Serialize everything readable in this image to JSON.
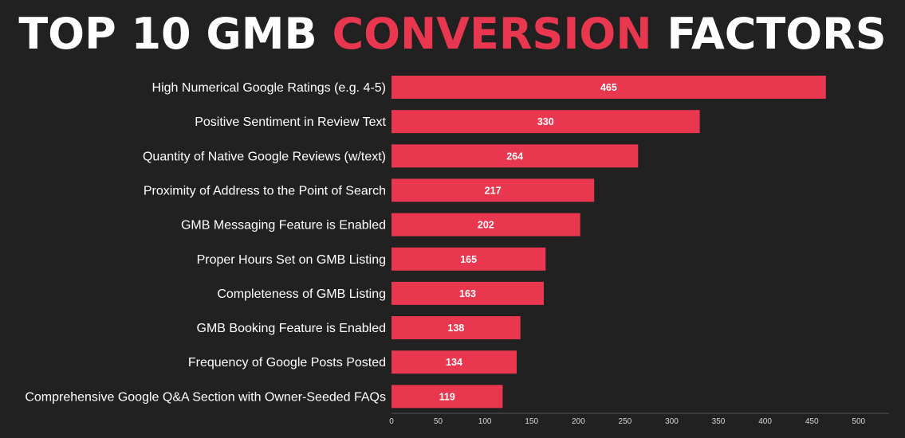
{
  "title": {
    "part1": "TOP 10 GMB ",
    "part2": "CONVERSION",
    "part3": " FACTORS"
  },
  "colors": {
    "background": "#212121",
    "bar": "#e8374f",
    "accent": "#e8374f",
    "text": "#ffffff"
  },
  "chart_data": {
    "type": "bar",
    "orientation": "horizontal",
    "categories": [
      "High Numerical Google Ratings (e.g. 4-5)",
      "Positive Sentiment in Review Text",
      "Quantity of Native Google Reviews (w/text)",
      "Proximity of Address to the Point of Search",
      "GMB Messaging Feature is Enabled",
      "Proper Hours Set on GMB Listing",
      "Completeness of GMB Listing",
      "GMB Booking Feature is Enabled",
      "Frequency of Google Posts Posted",
      "Comprehensive Google Q&A Section with Owner-Seeded FAQs"
    ],
    "values": [
      465,
      330,
      264,
      217,
      202,
      165,
      163,
      138,
      134,
      119
    ],
    "xlim": [
      0,
      500
    ],
    "xticks": [
      0,
      50,
      100,
      150,
      200,
      250,
      300,
      350,
      400,
      450,
      500
    ],
    "grid": false,
    "data_labels": true
  }
}
